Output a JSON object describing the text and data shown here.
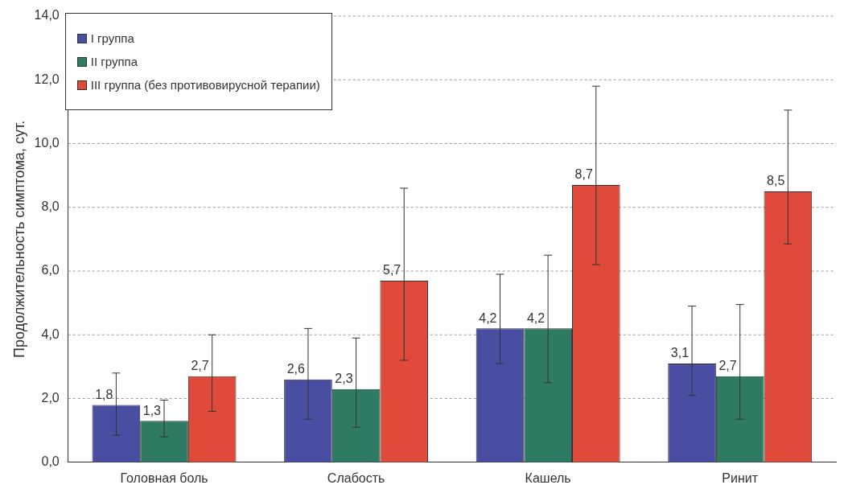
{
  "chart_data": {
    "type": "bar",
    "ylabel": "Продолжительность симптома, сут.",
    "categories": [
      "Головная боль",
      "Слабость",
      "Кашель",
      "Ринит"
    ],
    "series": [
      {
        "name": "I группа",
        "color": "#4a4ea3",
        "values": [
          1.8,
          2.6,
          4.2,
          3.1
        ],
        "value_labels": [
          "1,8",
          "2,6",
          "4,2",
          "3,1"
        ],
        "errors": [
          [
            0.85,
            2.8
          ],
          [
            1.35,
            4.2
          ],
          [
            3.1,
            5.9
          ],
          [
            2.1,
            4.9
          ]
        ]
      },
      {
        "name": "II группа",
        "color": "#2f7a62",
        "values": [
          1.3,
          2.3,
          4.2,
          2.7
        ],
        "value_labels": [
          "1,3",
          "2,3",
          "4,2",
          "2,7"
        ],
        "errors": [
          [
            0.8,
            1.95
          ],
          [
            1.1,
            3.9
          ],
          [
            2.5,
            6.5
          ],
          [
            1.35,
            4.95
          ]
        ]
      },
      {
        "name": "III группа (без противовирусной терапии)",
        "color": "#e04a3a",
        "values": [
          2.7,
          5.7,
          8.7,
          8.5
        ],
        "value_labels": [
          "2,7",
          "5,7",
          "8,7",
          "8,5"
        ],
        "errors": [
          [
            1.6,
            4.0
          ],
          [
            3.2,
            8.6
          ],
          [
            6.2,
            11.8
          ],
          [
            6.85,
            11.05
          ]
        ]
      }
    ],
    "ylim": [
      0,
      14
    ],
    "yticks": [
      {
        "value": 0,
        "label": "0,0"
      },
      {
        "value": 2,
        "label": "2,0"
      },
      {
        "value": 4,
        "label": "4,0"
      },
      {
        "value": 6,
        "label": "6,0"
      },
      {
        "value": 8,
        "label": "8,0"
      },
      {
        "value": 10,
        "label": "10,0"
      },
      {
        "value": 12,
        "label": "12,0"
      },
      {
        "value": 14,
        "label": "14,0"
      }
    ],
    "grid": "y",
    "legend": "top left"
  }
}
